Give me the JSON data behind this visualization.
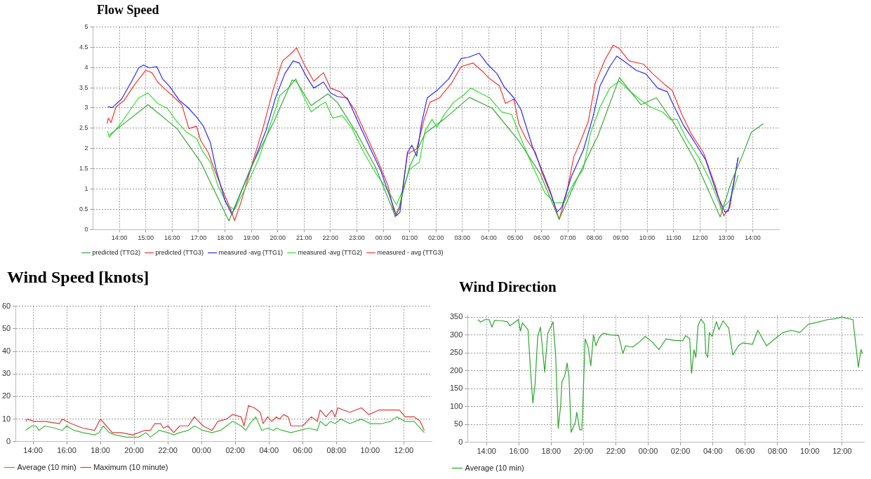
{
  "chart_data": [
    {
      "type": "line",
      "title": "Flow Speed",
      "legend": "bottom left",
      "grid": true,
      "marker": "none",
      "xlim": [
        "--01-01T13:00",
        "--01-02T15:00"
      ],
      "ylim": [
        0,
        5
      ],
      "xticks": [
        {
          "value": "--01-01T14:00",
          "label": "14:00"
        },
        {
          "value": "--01-01T15:00",
          "label": "15:00"
        },
        {
          "value": "--01-01T16:00",
          "label": "16:00"
        },
        {
          "value": "--01-01T17:00",
          "label": "17:00"
        },
        {
          "value": "--01-01T18:00",
          "label": "18:00"
        },
        {
          "value": "--01-01T19:00",
          "label": "19:00"
        },
        {
          "value": "--01-01T20:00",
          "label": "20:00"
        },
        {
          "value": "--01-01T21:00",
          "label": "21:00"
        },
        {
          "value": "--01-01T22:00",
          "label": "22:00"
        },
        {
          "value": "--01-01T23:00",
          "label": "23:00"
        },
        {
          "value": "--01-02T00:00",
          "label": "00:00"
        },
        {
          "value": "--01-02T01:00",
          "label": "01:00"
        },
        {
          "value": "--01-02T02:00",
          "label": "02:00"
        },
        {
          "value": "--01-02T03:00",
          "label": "03:00"
        },
        {
          "value": "--01-02T04:00",
          "label": "04:00"
        },
        {
          "value": "--01-02T05:00",
          "label": "05:00"
        },
        {
          "value": "--01-02T06:00",
          "label": "06:00"
        },
        {
          "value": "--01-02T07:00",
          "label": "07:00"
        },
        {
          "value": "--01-02T08:00",
          "label": "08:00"
        },
        {
          "value": "--01-02T09:00",
          "label": "09:00"
        },
        {
          "value": "--01-02T10:00",
          "label": "10:00"
        },
        {
          "value": "--01-02T11:00",
          "label": "11:00"
        },
        {
          "value": "--01-02T12:00",
          "label": "12:00"
        },
        {
          "value": "--01-02T13:00",
          "label": "13:00"
        },
        {
          "value": "--01-02T14:00",
          "label": "14:00"
        }
      ],
      "yticks": [
        0,
        0.5,
        1,
        1.5,
        2,
        2.5,
        3,
        3.5,
        4,
        4.5,
        5
      ],
      "series": [
        {
          "name": "predicted (TTG2)",
          "color": "#3aa83a",
          "x": [
            "--01-01T13:37",
            "--01-01T15:05",
            "--01-01T16:11",
            "--01-01T17:05",
            "--01-01T18:09",
            "--01-01T19:00",
            "--01-01T19:54",
            "--01-01T20:33",
            "--01-01T20:42",
            "--01-01T21:16",
            "--01-01T21:54",
            "--01-01T22:16",
            "--01-01T23:00",
            "--01-01T23:42",
            "--01-02T00:27",
            "--01-02T00:36",
            "--01-02T01:00",
            "--01-02T01:35",
            "--01-02T02:18",
            "--01-02T03:16",
            "--01-02T04:08",
            "--01-02T05:08",
            "--01-02T05:57",
            "--01-02T06:40",
            "--01-02T07:18",
            "--01-02T08:08",
            "--01-02T08:57",
            "--01-02T09:46",
            "--01-02T10:21",
            "--01-02T11:02",
            "--01-02T11:51",
            "--01-02T12:46",
            "--01-02T13:12",
            "--01-02T13:35",
            "--01-02T13:57",
            "--01-02T14:24"
          ],
          "values": [
            2.33,
            3.08,
            2.49,
            1.66,
            0.21,
            1.55,
            2.72,
            3.69,
            3.66,
            3.06,
            3.35,
            3.13,
            2.37,
            1.55,
            0.34,
            0.55,
            1.55,
            2.37,
            2.72,
            3.26,
            2.99,
            2.19,
            1.37,
            0.25,
            1.19,
            2.31,
            3.75,
            3.08,
            3.25,
            2.61,
            1.66,
            0.31,
            1.19,
            1.78,
            2.4,
            2.61
          ]
        },
        {
          "name": "predicted (TTG3)",
          "color": "#ff3030"
        },
        {
          "name": "measured -avg (TTG1)",
          "color": "#2a2aff",
          "x": [
            "--01-01T13:34",
            "--01-01T13:44",
            "--01-01T14:05",
            "--01-01T14:27",
            "--01-01T14:44",
            "--01-01T14:55",
            "--01-01T15:08",
            "--01-01T15:25",
            "--01-01T15:38",
            "--01-01T15:55",
            "--01-01T16:16",
            "--01-01T16:35",
            "--01-01T16:55",
            "--01-01T17:11",
            "--01-01T17:27",
            "--01-01T17:41",
            "--01-01T18:00",
            "--01-01T18:16",
            "--01-01T18:38",
            "--01-01T19:05",
            "--01-01T19:33",
            "--01-01T19:55",
            "--01-01T20:16",
            "--01-01T20:35",
            "--01-01T20:49",
            "--01-01T21:05",
            "--01-01T21:22",
            "--01-01T21:44",
            "--01-01T22:00",
            "--01-01T22:16",
            "--01-01T22:38",
            "--01-01T23:00",
            "--01-01T23:27",
            "--01-01T23:55",
            "--01-02T00:16",
            "--01-02T00:30",
            "--01-02T00:38",
            "--01-02T00:55",
            "--01-02T01:05",
            "--01-02T01:16",
            "--01-02T01:27",
            "--01-02T01:40",
            "--01-02T02:02",
            "--01-02T02:29",
            "--01-02T02:57",
            "--01-02T03:13",
            "--01-02T03:38",
            "--01-02T03:57",
            "--01-02T04:19",
            "--01-02T04:35",
            "--01-02T04:57",
            "--01-02T05:13",
            "--01-02T05:40",
            "--01-02T06:02",
            "--01-02T06:19",
            "--01-02T06:35",
            "--01-02T06:46",
            "--01-02T07:08",
            "--01-02T07:35",
            "--01-02T07:57",
            "--01-02T08:13",
            "--01-02T08:35",
            "--01-02T08:51",
            "--01-02T09:13",
            "--01-02T09:35",
            "--01-02T09:57",
            "--01-02T10:24",
            "--01-02T10:46",
            "--01-02T11:02",
            "--01-02T11:24",
            "--01-02T11:46",
            "--01-02T12:13",
            "--01-02T12:40",
            "--01-02T12:57",
            "--01-02T13:05",
            "--01-02T13:27"
          ],
          "values": [
            3.03,
            3.01,
            3.22,
            3.64,
            3.99,
            4.06,
            3.99,
            4.02,
            3.72,
            3.52,
            3.19,
            3.02,
            2.78,
            2.55,
            2.14,
            1.43,
            0.72,
            0.37,
            0.96,
            1.66,
            2.43,
            3.25,
            3.84,
            4.16,
            4.11,
            3.78,
            3.49,
            3.64,
            3.37,
            3.28,
            3.25,
            2.72,
            2.08,
            1.43,
            0.78,
            0.34,
            0.43,
            1.9,
            2.08,
            1.81,
            2.61,
            3.25,
            3.43,
            3.72,
            4.22,
            4.25,
            4.35,
            4.08,
            3.84,
            3.52,
            3.25,
            2.96,
            2.02,
            1.43,
            0.96,
            0.43,
            0.55,
            1.31,
            1.96,
            2.78,
            3.55,
            4.02,
            4.28,
            4.11,
            3.93,
            3.84,
            3.49,
            3.4,
            3.02,
            2.55,
            2.19,
            1.72,
            0.84,
            0.43,
            0.46,
            1.78
          ]
        },
        {
          "name": "measured -avg (TTG2)",
          "color": "#30e030",
          "x": [
            "--01-01T13:33",
            "--01-01T13:37",
            "--01-01T13:49",
            "--01-01T14:05",
            "--01-01T14:27",
            "--01-01T14:44",
            "--01-01T15:05",
            "--01-01T15:27",
            "--01-01T15:49",
            "--01-01T16:11",
            "--01-01T16:33",
            "--01-01T16:55",
            "--01-01T17:11",
            "--01-01T17:27",
            "--01-01T17:44",
            "--01-01T18:05",
            "--01-01T18:22",
            "--01-01T18:49",
            "--01-01T19:16",
            "--01-01T19:44",
            "--01-01T20:05",
            "--01-01T20:27",
            "--01-01T20:41",
            "--01-01T20:55",
            "--01-01T21:16",
            "--01-01T21:38",
            "--01-01T21:49",
            "--01-01T22:05",
            "--01-01T22:27",
            "--01-01T22:49",
            "--01-01T23:16",
            "--01-01T23:44",
            "--01-02T00:11",
            "--01-02T00:30",
            "--01-02T00:44",
            "--01-02T01:00",
            "--01-02T01:22",
            "--01-02T01:35",
            "--01-02T01:51",
            "--01-02T02:02",
            "--01-02T02:19",
            "--01-02T02:40",
            "--01-02T03:02",
            "--01-02T03:19",
            "--01-02T03:40",
            "--01-02T04:02",
            "--01-02T04:29",
            "--01-02T04:52",
            "--01-02T05:13",
            "--01-02T05:40",
            "--01-02T06:08",
            "--01-02T06:29",
            "--01-02T06:51",
            "--01-02T07:13",
            "--01-02T07:35",
            "--01-02T07:51",
            "--01-02T08:13",
            "--01-02T08:35",
            "--01-02T08:57",
            "--01-02T09:19",
            "--01-02T09:46",
            "--01-02T10:08",
            "--01-02T10:35",
            "--01-02T10:52",
            "--01-02T11:08",
            "--01-02T11:29",
            "--01-02T11:57",
            "--01-02T12:24",
            "--01-02T12:49",
            "--01-02T13:08",
            "--01-02T13:27"
          ],
          "values": [
            2.43,
            2.28,
            2.43,
            2.64,
            2.99,
            3.25,
            3.37,
            3.11,
            2.99,
            2.66,
            2.4,
            2.25,
            1.9,
            1.66,
            1.08,
            0.61,
            0.49,
            1.08,
            1.72,
            2.61,
            3.31,
            3.52,
            3.72,
            3.37,
            2.9,
            3.08,
            3.14,
            2.75,
            2.81,
            2.49,
            1.9,
            1.37,
            0.96,
            0.61,
            0.96,
            1.49,
            1.66,
            2.43,
            2.72,
            2.52,
            2.84,
            3.14,
            3.31,
            3.49,
            3.37,
            3.25,
            2.9,
            2.84,
            2.25,
            1.55,
            0.9,
            0.66,
            0.66,
            1.14,
            1.49,
            2.37,
            3.02,
            3.49,
            3.66,
            3.43,
            3.19,
            3.02,
            2.9,
            2.72,
            2.72,
            2.25,
            1.78,
            1.19,
            0.49,
            0.72,
            1.34
          ]
        },
        {
          "name": "measured - avg (TTG3)",
          "color": "#ff3030",
          "x": [
            "--01-01T13:32",
            "--01-01T13:35",
            "--01-01T13:41",
            "--01-01T13:52",
            "--01-01T14:11",
            "--01-01T14:33",
            "--01-01T14:49",
            "--01-01T15:00",
            "--01-01T15:14",
            "--01-01T15:27",
            "--01-01T15:44",
            "--01-01T16:00",
            "--01-01T16:22",
            "--01-01T16:38",
            "--01-01T16:55",
            "--01-01T17:05",
            "--01-01T17:22",
            "--01-01T17:38",
            "--01-01T17:55",
            "--01-01T18:11",
            "--01-01T18:22",
            "--01-01T18:38",
            "--01-01T19:00",
            "--01-01T19:27",
            "--01-01T19:49",
            "--01-01T20:11",
            "--01-01T20:27",
            "--01-01T20:43",
            "--01-01T21:00",
            "--01-01T21:22",
            "--01-01T21:44",
            "--01-01T22:00",
            "--01-01T22:22",
            "--01-01T22:38",
            "--01-01T22:55",
            "--01-01T23:22",
            "--01-01T23:49",
            "--01-02T00:11",
            "--01-02T00:27",
            "--01-02T00:38",
            "--01-02T00:55",
            "--01-02T01:16",
            "--01-02T01:33",
            "--01-02T01:46",
            "--01-02T02:08",
            "--01-02T02:35",
            "--01-02T02:57",
            "--01-02T03:24",
            "--01-02T03:46",
            "--01-02T04:02",
            "--01-02T04:24",
            "--01-02T04:38",
            "--01-02T04:57",
            "--01-02T05:08",
            "--01-02T05:24",
            "--01-02T05:46",
            "--01-02T06:02",
            "--01-02T06:22",
            "--01-02T06:40",
            "--01-02T06:57",
            "--01-02T07:13",
            "--01-02T07:29",
            "--01-02T07:46",
            "--01-02T08:02",
            "--01-02T08:24",
            "--01-02T08:43",
            "--01-02T08:57",
            "--01-02T09:19",
            "--01-02T09:52",
            "--01-02T10:13",
            "--01-02T10:40",
            "--01-02T10:57",
            "--01-02T11:19",
            "--01-02T11:40",
            "--01-02T12:08",
            "--01-02T12:35",
            "--01-02T12:54",
            "--01-02T13:08",
            "--01-02T13:27"
          ],
          "values": [
            2.61,
            2.75,
            2.64,
            3.02,
            3.19,
            3.55,
            3.78,
            3.93,
            3.87,
            3.64,
            3.46,
            3.31,
            3.08,
            2.49,
            2.55,
            2.19,
            1.9,
            1.43,
            0.96,
            0.55,
            0.22,
            0.72,
            1.55,
            2.52,
            3.43,
            4.16,
            4.31,
            4.48,
            4.08,
            3.66,
            3.87,
            3.49,
            3.4,
            3.22,
            2.96,
            2.31,
            1.66,
            1.08,
            0.31,
            0.55,
            1.87,
            1.99,
            2.72,
            3.14,
            3.25,
            3.61,
            4.02,
            4.11,
            3.9,
            3.72,
            3.55,
            3.11,
            3.22,
            2.61,
            2.25,
            1.9,
            1.37,
            0.84,
            0.25,
            0.9,
            1.78,
            2.19,
            2.66,
            3.61,
            4.19,
            4.55,
            4.46,
            4.16,
            4.08,
            3.84,
            3.58,
            3.43,
            2.84,
            2.37,
            1.9,
            1.08,
            0.34,
            0.55,
            1.78
          ]
        }
      ]
    },
    {
      "type": "line",
      "title": "Wind Speed [knots]",
      "legend": "bottom left",
      "grid": true,
      "marker": "none",
      "xlim": [
        "--01-01T12:58",
        "--01-02T13:39"
      ],
      "ylim": [
        0,
        60
      ],
      "xticks": [
        {
          "value": "--01-01T14:00",
          "label": "14:00"
        },
        {
          "value": "--01-01T16:00",
          "label": "16:00"
        },
        {
          "value": "--01-01T18:00",
          "label": "18:00"
        },
        {
          "value": "--01-01T20:00",
          "label": "20:00"
        },
        {
          "value": "--01-01T22:00",
          "label": "22:00"
        },
        {
          "value": "--01-02T00:00",
          "label": "00:00"
        },
        {
          "value": "--01-02T02:00",
          "label": "02:00"
        },
        {
          "value": "--01-02T04:00",
          "label": "04:00"
        },
        {
          "value": "--01-02T06:00",
          "label": "06:00"
        },
        {
          "value": "--01-02T08:00",
          "label": "08:00"
        },
        {
          "value": "--01-02T10:00",
          "label": "10:00"
        },
        {
          "value": "--01-02T12:00",
          "label": "12:00"
        }
      ],
      "yticks": [
        0,
        10,
        20,
        30,
        40,
        50,
        60
      ],
      "series": [
        {
          "name": "Average (10 min)",
          "color": "#3cb83c",
          "x": [
            "--01-01T13:34",
            "--01-01T13:55",
            "--01-01T14:10",
            "--01-01T14:21",
            "--01-01T14:42",
            "--01-01T15:18",
            "--01-01T15:44",
            "--01-01T16:00",
            "--01-01T16:26",
            "--01-01T16:58",
            "--01-01T17:39",
            "--01-01T17:55",
            "--01-01T18:10",
            "--01-01T18:31",
            "--01-01T18:52",
            "--01-01T19:34",
            "--01-01T20:16",
            "--01-01T20:42",
            "--01-01T20:58",
            "--01-01T21:29",
            "--01-01T22:00",
            "--01-01T22:21",
            "--01-01T22:42",
            "--01-01T23:13",
            "--01-01T23:34",
            "--01-02T00:05",
            "--01-02T00:37",
            "--01-02T01:08",
            "--01-02T01:50",
            "--01-02T02:21",
            "--01-02T02:37",
            "--01-02T02:52",
            "--01-02T03:13",
            "--01-02T03:34",
            "--01-02T03:55",
            "--01-02T04:16",
            "--01-02T04:26",
            "--01-02T04:47",
            "--01-02T05:18",
            "--01-02T05:50",
            "--01-02T06:21",
            "--01-02T06:52",
            "--01-02T07:02",
            "--01-02T07:23",
            "--01-02T07:39",
            "--01-02T07:55",
            "--01-02T08:16",
            "--01-02T08:47",
            "--01-02T09:29",
            "--01-02T10:00",
            "--01-02T10:42",
            "--01-02T11:13",
            "--01-02T11:34",
            "--01-02T12:05",
            "--01-02T12:37",
            "--01-02T12:58",
            "--01-02T13:13"
          ],
          "values": [
            5,
            7,
            7,
            5,
            7,
            6,
            5,
            7,
            5,
            4,
            3,
            4,
            7,
            4,
            3,
            2,
            2,
            4,
            2,
            5,
            4,
            3,
            4,
            5,
            7,
            5,
            4,
            5,
            9,
            7,
            5,
            8,
            11,
            5,
            6,
            5,
            6,
            5,
            4,
            5,
            6,
            5,
            9,
            7,
            9,
            8,
            10,
            8,
            10,
            8,
            8,
            9,
            11,
            9,
            9,
            6,
            4
          ]
        },
        {
          "name": "Maximum (10 minute)",
          "color": "#e03a3a",
          "x": [
            "--01-01T13:34",
            "--01-01T13:39",
            "--01-01T14:05",
            "--01-01T14:42",
            "--01-01T15:34",
            "--01-01T15:44",
            "--01-01T16:16",
            "--01-01T16:58",
            "--01-01T17:39",
            "--01-01T18:00",
            "--01-01T18:21",
            "--01-01T18:42",
            "--01-01T19:13",
            "--01-01T19:55",
            "--01-01T20:37",
            "--01-01T20:58",
            "--01-01T21:13",
            "--01-01T21:34",
            "--01-01T21:44",
            "--01-01T22:00",
            "--01-01T22:21",
            "--01-01T22:42",
            "--01-01T23:13",
            "--01-01T23:34",
            "--01-02T00:05",
            "--01-02T00:37",
            "--01-02T00:58",
            "--01-02T01:29",
            "--01-02T01:50",
            "--01-02T02:21",
            "--01-02T02:31",
            "--01-02T02:47",
            "--01-02T03:08",
            "--01-02T03:29",
            "--01-02T03:39",
            "--01-02T03:55",
            "--01-02T04:10",
            "--01-02T04:26",
            "--01-02T04:37",
            "--01-02T04:52",
            "--01-02T05:08",
            "--01-02T05:18",
            "--01-02T06:00",
            "--01-02T06:31",
            "--01-02T06:52",
            "--01-02T07:02",
            "--01-02T07:23",
            "--01-02T07:44",
            "--01-02T07:55",
            "--01-02T08:05",
            "--01-02T08:47",
            "--01-02T09:29",
            "--01-02T09:55",
            "--01-02T10:31",
            "--01-02T11:13",
            "--01-02T11:44",
            "--01-02T12:05",
            "--01-02T12:37",
            "--01-02T12:58",
            "--01-02T13:13"
          ],
          "values": [
            9,
            10,
            9,
            9,
            8,
            10,
            8,
            6,
            5,
            10,
            7,
            4,
            4,
            3,
            5,
            5,
            8,
            8,
            6,
            7,
            4,
            7,
            7,
            11,
            7,
            5,
            9,
            10,
            12,
            11,
            7,
            16,
            15,
            13,
            8,
            11,
            9,
            11,
            10,
            12,
            11,
            7,
            7,
            11,
            9,
            14,
            11,
            14,
            11,
            15,
            13,
            15,
            12,
            14,
            14,
            14,
            11,
            11,
            9,
            5
          ]
        }
      ]
    },
    {
      "type": "line",
      "title": "Wind Direction",
      "legend": "bottom left",
      "grid": true,
      "marker": "none",
      "xlim": [
        "--01-01T12:50",
        "--01-02T13:21"
      ],
      "ylim": [
        0,
        355
      ],
      "xticks": [
        {
          "value": "--01-01T14:00",
          "label": "14:00"
        },
        {
          "value": "--01-01T16:00",
          "label": "16:00"
        },
        {
          "value": "--01-01T18:00",
          "label": "18:00"
        },
        {
          "value": "--01-01T20:00",
          "label": "20:00"
        },
        {
          "value": "--01-01T22:00",
          "label": "22:00"
        },
        {
          "value": "--01-02T00:00",
          "label": "00:00"
        },
        {
          "value": "--01-02T02:00",
          "label": "02:00"
        },
        {
          "value": "--01-02T04:00",
          "label": "04:00"
        },
        {
          "value": "--01-02T06:00",
          "label": "06:00"
        },
        {
          "value": "--01-02T08:00",
          "label": "08:00"
        },
        {
          "value": "--01-02T10:00",
          "label": "10:00"
        },
        {
          "value": "--01-02T12:00",
          "label": "12:00"
        }
      ],
      "yticks": [
        0,
        50,
        100,
        150,
        200,
        250,
        300,
        350
      ],
      "series": [
        {
          "name": "Average (10 min)",
          "color": "#2ca62c",
          "x": [
            "--01-01T13:28",
            "--01-01T13:38",
            "--01-01T13:54",
            "--01-01T14:10",
            "--01-01T14:20",
            "--01-01T14:30",
            "--01-01T14:56",
            "--01-01T15:17",
            "--01-01T15:27",
            "--01-01T15:58",
            "--01-01T16:06",
            "--01-01T16:13",
            "--01-01T16:34",
            "--01-01T16:44",
            "--01-01T16:52",
            "--01-01T17:00",
            "--01-01T17:10",
            "--01-01T17:20",
            "--01-01T17:36",
            "--01-01T17:47",
            "--01-01T18:07",
            "--01-01T18:17",
            "--01-01T18:26",
            "--01-01T18:35",
            "--01-01T18:40",
            "--01-01T18:49",
            "--01-01T18:54",
            "--01-01T18:59",
            "--01-01T19:06",
            "--01-01T19:14",
            "--01-01T19:30",
            "--01-01T19:35",
            "--01-01T19:46",
            "--01-01T19:54",
            "--01-01T20:06",
            "--01-01T20:17",
            "--01-01T20:27",
            "--01-01T20:37",
            "--01-01T20:46",
            "--01-01T20:58",
            "--01-01T21:13",
            "--01-01T21:40",
            "--01-01T22:10",
            "--01-01T22:26",
            "--01-01T22:36",
            "--01-01T23:02",
            "--01-01T23:28",
            "--01-01T23:49",
            "--01-02T00:14",
            "--01-02T00:40",
            "--01-02T01:06",
            "--01-02T01:37",
            "--01-02T02:08",
            "--01-02T02:19",
            "--01-02T02:34",
            "--01-02T02:41",
            "--01-02T02:50",
            "--01-02T02:57",
            "--01-02T03:05",
            "--01-02T03:16",
            "--01-02T03:29",
            "--01-02T03:34",
            "--01-02T03:41",
            "--01-02T03:47",
            "--01-02T03:57",
            "--01-02T04:13",
            "--01-02T04:23",
            "--01-02T04:38",
            "--01-02T04:59",
            "--01-02T05:14",
            "--01-02T05:35",
            "--01-02T05:50",
            "--01-02T06:27",
            "--01-02T06:47",
            "--01-02T07:19",
            "--01-02T07:50",
            "--01-02T08:20",
            "--01-02T08:52",
            "--01-02T09:23",
            "--01-02T09:54",
            "--01-02T10:25",
            "--01-02T11:06",
            "--01-02T11:32",
            "--01-02T11:58",
            "--01-02T12:40",
            "--01-02T13:00",
            "--01-02T13:10",
            "--01-02T13:16"
          ],
          "values": [
            343,
            336,
            343,
            343,
            322,
            341,
            340,
            337,
            326,
            343,
            311,
            334,
            315,
            192,
            110,
            162,
            296,
            322,
            196,
            304,
            337,
            237,
            39,
            102,
            169,
            184,
            199,
            222,
            184,
            28,
            57,
            84,
            35,
            35,
            289,
            266,
            214,
            300,
            270,
            293,
            305,
            300,
            299,
            248,
            270,
            266,
            281,
            296,
            281,
            259,
            289,
            285,
            284,
            298,
            290,
            193,
            259,
            237,
            326,
            345,
            330,
            248,
            237,
            307,
            296,
            337,
            315,
            340,
            319,
            244,
            270,
            278,
            274,
            313,
            270,
            289,
            307,
            313,
            307,
            330,
            335,
            343,
            345,
            350,
            343,
            210,
            259,
            248
          ]
        }
      ]
    }
  ]
}
